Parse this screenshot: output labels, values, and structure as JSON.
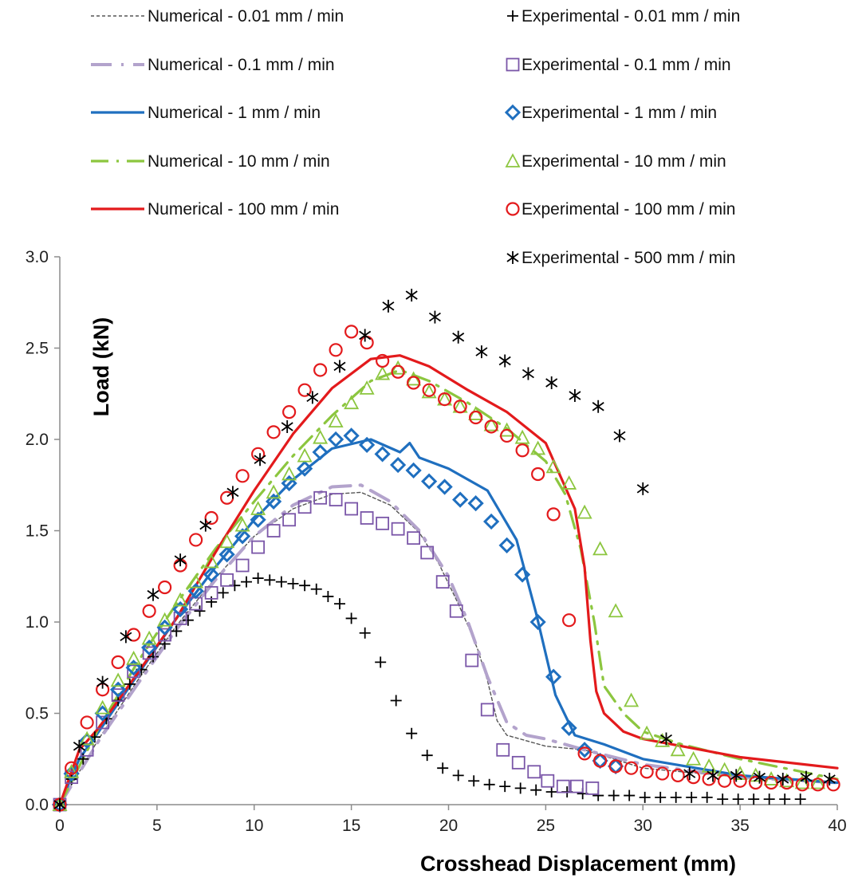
{
  "chart_data": {
    "type": "line",
    "title": "",
    "xlabel": "Crosshead Displacement (mm)",
    "ylabel": "Load (kN)",
    "xlim": [
      0,
      40
    ],
    "ylim": [
      0,
      3.0
    ],
    "x_ticks": [
      "0",
      "5",
      "10",
      "15",
      "20",
      "25",
      "30",
      "35",
      "40"
    ],
    "y_ticks": [
      "0.0",
      "0.5",
      "1.0",
      "1.5",
      "2.0",
      "2.5",
      "3.0"
    ],
    "grid": false,
    "legend_position": "top",
    "series": [
      {
        "name": "Numerical - 0.01 mm / min",
        "kind": "line",
        "style": "dashed-fine",
        "color": "#555555",
        "x": [
          0,
          2,
          4,
          6,
          8,
          10,
          12,
          14,
          15.5,
          17,
          18.5,
          19.5,
          20.5,
          21,
          21.5,
          22,
          22.5,
          23,
          25,
          27,
          30,
          35,
          40
        ],
        "y": [
          0,
          0.36,
          0.68,
          0.98,
          1.24,
          1.47,
          1.62,
          1.7,
          1.71,
          1.64,
          1.49,
          1.32,
          1.1,
          0.98,
          0.85,
          0.68,
          0.46,
          0.38,
          0.32,
          0.3,
          0.2,
          0.15,
          0.12
        ]
      },
      {
        "name": "Numerical - 0.1 mm / min",
        "kind": "line",
        "style": "long-dash-dot",
        "color": "#b3a3cc",
        "x": [
          0,
          2,
          4,
          6,
          8,
          10,
          12,
          14,
          15.5,
          17,
          18.5,
          20,
          21,
          22,
          23,
          24,
          25,
          27,
          30,
          35,
          40
        ],
        "y": [
          0,
          0.35,
          0.66,
          0.96,
          1.23,
          1.47,
          1.64,
          1.74,
          1.75,
          1.66,
          1.5,
          1.25,
          1.0,
          0.7,
          0.45,
          0.38,
          0.36,
          0.3,
          0.22,
          0.15,
          0.12
        ]
      },
      {
        "name": "Numerical - 1 mm / min",
        "kind": "line",
        "style": "solid",
        "color": "#1f6fbf",
        "x": [
          0,
          1,
          2,
          4,
          6,
          8,
          10,
          12,
          14,
          16,
          17.5,
          18,
          18.5,
          20,
          22,
          23.5,
          24.5,
          25.5,
          26.5,
          28,
          30,
          35,
          40
        ],
        "y": [
          0,
          0.25,
          0.4,
          0.71,
          1.02,
          1.3,
          1.56,
          1.78,
          1.95,
          2.0,
          1.93,
          1.98,
          1.9,
          1.84,
          1.72,
          1.45,
          1.05,
          0.6,
          0.38,
          0.33,
          0.25,
          0.16,
          0.12
        ]
      },
      {
        "name": "Numerical - 10 mm / min",
        "kind": "line",
        "style": "dash-dot",
        "color": "#8cc63f",
        "x": [
          0,
          2,
          4,
          6,
          8,
          10,
          12,
          14,
          16,
          17.5,
          19,
          21,
          23,
          25,
          26,
          26.8,
          27.5,
          28,
          29,
          30,
          32,
          35,
          40
        ],
        "y": [
          0,
          0.42,
          0.78,
          1.1,
          1.4,
          1.66,
          1.91,
          2.13,
          2.32,
          2.38,
          2.32,
          2.2,
          2.06,
          1.88,
          1.7,
          1.4,
          1.0,
          0.65,
          0.5,
          0.4,
          0.33,
          0.25,
          0.14
        ]
      },
      {
        "name": "Numerical - 100 mm / min",
        "kind": "line",
        "style": "solid",
        "color": "#e31a1c",
        "x": [
          0,
          1,
          2,
          4,
          6,
          8,
          10,
          12,
          14,
          16,
          17.5,
          19,
          21,
          23,
          25,
          26.5,
          27,
          27.3,
          27.6,
          28,
          29,
          30,
          32,
          35,
          40
        ],
        "y": [
          0,
          0.3,
          0.42,
          0.72,
          1.02,
          1.38,
          1.72,
          2.03,
          2.28,
          2.44,
          2.46,
          2.4,
          2.27,
          2.15,
          1.98,
          1.62,
          1.3,
          0.9,
          0.62,
          0.5,
          0.4,
          0.36,
          0.32,
          0.26,
          0.2
        ]
      },
      {
        "name": "Experimental - 0.01 mm / min",
        "kind": "marker",
        "marker": "plus",
        "color": "#000000",
        "x": [
          0,
          0.6,
          1.2,
          1.8,
          2.4,
          3.0,
          3.6,
          4.2,
          4.8,
          5.4,
          6.0,
          6.6,
          7.2,
          7.8,
          8.4,
          9.0,
          9.6,
          10.2,
          10.8,
          11.4,
          12.0,
          12.6,
          13.2,
          13.8,
          14.4,
          15.0,
          15.7,
          16.5,
          17.3,
          18.1,
          18.9,
          19.7,
          20.5,
          21.3,
          22.1,
          22.9,
          23.7,
          24.5,
          25.3,
          26.1,
          26.9,
          27.7,
          28.5,
          29.3,
          30.1,
          30.9,
          31.7,
          32.5,
          33.3,
          34.1,
          34.9,
          35.7,
          36.5,
          37.3,
          38.1
        ],
        "y": [
          0,
          0.14,
          0.25,
          0.37,
          0.47,
          0.57,
          0.66,
          0.74,
          0.81,
          0.88,
          0.95,
          1.01,
          1.06,
          1.11,
          1.16,
          1.2,
          1.22,
          1.24,
          1.23,
          1.22,
          1.21,
          1.2,
          1.18,
          1.14,
          1.1,
          1.02,
          0.94,
          0.78,
          0.57,
          0.39,
          0.27,
          0.2,
          0.16,
          0.13,
          0.11,
          0.1,
          0.09,
          0.08,
          0.07,
          0.07,
          0.06,
          0.05,
          0.05,
          0.05,
          0.04,
          0.04,
          0.04,
          0.04,
          0.04,
          0.03,
          0.03,
          0.03,
          0.03,
          0.03,
          0.03
        ]
      },
      {
        "name": "Experimental - 0.1 mm / min",
        "kind": "marker",
        "marker": "square",
        "color": "#7a56a8",
        "x": [
          0,
          0.6,
          1.4,
          2.2,
          3.0,
          3.8,
          4.6,
          5.4,
          6.2,
          7.0,
          7.8,
          8.6,
          9.4,
          10.2,
          11.0,
          11.8,
          12.6,
          13.4,
          14.2,
          15.0,
          15.8,
          16.6,
          17.4,
          18.2,
          18.9,
          19.7,
          20.4,
          21.2,
          22.0,
          22.8,
          23.6,
          24.4,
          25.1,
          25.9,
          26.6,
          27.4
        ],
        "y": [
          0,
          0.15,
          0.3,
          0.45,
          0.6,
          0.73,
          0.83,
          0.93,
          1.02,
          1.1,
          1.16,
          1.23,
          1.31,
          1.41,
          1.5,
          1.56,
          1.63,
          1.68,
          1.67,
          1.62,
          1.57,
          1.54,
          1.51,
          1.46,
          1.38,
          1.22,
          1.06,
          0.79,
          0.52,
          0.3,
          0.23,
          0.18,
          0.13,
          0.1,
          0.1,
          0.09
        ]
      },
      {
        "name": "Experimental - 1 mm / min",
        "kind": "marker",
        "marker": "diamond",
        "color": "#1f6fbf",
        "x": [
          0,
          0.6,
          1.4,
          2.2,
          3.0,
          3.8,
          4.6,
          5.4,
          6.2,
          7.0,
          7.8,
          8.6,
          9.4,
          10.2,
          11.0,
          11.8,
          12.6,
          13.4,
          14.2,
          15.0,
          15.8,
          16.6,
          17.4,
          18.2,
          19.0,
          19.8,
          20.6,
          21.4,
          22.2,
          23.0,
          23.8,
          24.6,
          25.4,
          26.2,
          27.0,
          27.8,
          28.6
        ],
        "y": [
          0,
          0.17,
          0.35,
          0.5,
          0.63,
          0.75,
          0.86,
          0.97,
          1.07,
          1.17,
          1.26,
          1.37,
          1.47,
          1.56,
          1.66,
          1.76,
          1.84,
          1.93,
          2.0,
          2.02,
          1.97,
          1.92,
          1.86,
          1.83,
          1.77,
          1.74,
          1.67,
          1.65,
          1.55,
          1.42,
          1.26,
          1.0,
          0.7,
          0.42,
          0.3,
          0.24,
          0.21
        ]
      },
      {
        "name": "Experimental - 10 mm / min",
        "kind": "marker",
        "marker": "triangle",
        "color": "#8cc63f",
        "x": [
          0,
          0.6,
          1.4,
          2.2,
          3.0,
          3.8,
          4.6,
          5.4,
          6.2,
          7.0,
          7.8,
          8.6,
          9.4,
          10.2,
          11.0,
          11.8,
          12.6,
          13.4,
          14.2,
          15.0,
          15.8,
          16.6,
          17.4,
          18.2,
          19.0,
          19.8,
          20.6,
          21.4,
          22.2,
          23.0,
          23.8,
          24.6,
          25.4,
          26.2,
          27.0,
          27.8,
          28.6,
          29.4,
          30.2,
          31.0,
          31.8,
          32.6,
          33.4,
          34.2,
          35.0,
          35.8,
          36.6,
          37.4,
          38.2,
          39.0
        ],
        "y": [
          0,
          0.18,
          0.36,
          0.53,
          0.68,
          0.8,
          0.91,
          1.01,
          1.12,
          1.22,
          1.33,
          1.44,
          1.53,
          1.62,
          1.71,
          1.81,
          1.91,
          2.01,
          2.1,
          2.2,
          2.28,
          2.36,
          2.39,
          2.33,
          2.26,
          2.22,
          2.18,
          2.14,
          2.08,
          2.05,
          2.01,
          1.95,
          1.85,
          1.76,
          1.6,
          1.4,
          1.06,
          0.57,
          0.39,
          0.35,
          0.3,
          0.25,
          0.21,
          0.19,
          0.17,
          0.16,
          0.14,
          0.13,
          0.12,
          0.12
        ]
      },
      {
        "name": "Experimental - 100 mm / min",
        "kind": "marker",
        "marker": "circle",
        "color": "#e31a1c",
        "x": [
          0,
          0.6,
          1.4,
          2.2,
          3.0,
          3.8,
          4.6,
          5.4,
          6.2,
          7.0,
          7.8,
          8.6,
          9.4,
          10.2,
          11.0,
          11.8,
          12.6,
          13.4,
          14.2,
          15.0,
          15.8,
          16.6,
          17.4,
          18.2,
          19.0,
          19.8,
          20.6,
          21.4,
          22.2,
          23.0,
          23.8,
          24.6,
          25.4,
          26.2,
          27.0,
          27.8,
          28.6,
          29.4,
          30.2,
          31.0,
          31.8,
          32.6,
          33.4,
          34.2,
          35.0,
          35.8,
          36.6,
          37.4,
          38.2,
          39.0,
          39.8
        ],
        "y": [
          0,
          0.2,
          0.45,
          0.63,
          0.78,
          0.93,
          1.06,
          1.19,
          1.31,
          1.45,
          1.57,
          1.68,
          1.8,
          1.92,
          2.04,
          2.15,
          2.27,
          2.38,
          2.49,
          2.59,
          2.53,
          2.43,
          2.37,
          2.31,
          2.27,
          2.22,
          2.18,
          2.12,
          2.07,
          2.02,
          1.94,
          1.81,
          1.59,
          1.01,
          0.28,
          0.24,
          0.21,
          0.2,
          0.18,
          0.17,
          0.16,
          0.15,
          0.14,
          0.13,
          0.13,
          0.12,
          0.12,
          0.12,
          0.11,
          0.11,
          0.11
        ]
      },
      {
        "name": "Experimental - 500 mm / min",
        "kind": "marker",
        "marker": "asterisk",
        "color": "#000000",
        "x": [
          0,
          1.0,
          2.2,
          3.4,
          4.8,
          6.2,
          7.5,
          8.9,
          10.3,
          11.7,
          13.0,
          14.4,
          15.7,
          16.9,
          18.1,
          19.3,
          20.5,
          21.7,
          22.9,
          24.1,
          25.3,
          26.5,
          27.7,
          28.8,
          30.0,
          31.2,
          32.4,
          33.6,
          34.8,
          36.0,
          37.2,
          38.4,
          39.6
        ],
        "y": [
          0,
          0.32,
          0.67,
          0.92,
          1.15,
          1.34,
          1.53,
          1.71,
          1.89,
          2.07,
          2.23,
          2.4,
          2.57,
          2.73,
          2.79,
          2.67,
          2.56,
          2.48,
          2.43,
          2.36,
          2.31,
          2.24,
          2.18,
          2.02,
          1.73,
          0.36,
          0.17,
          0.16,
          0.16,
          0.15,
          0.14,
          0.15,
          0.14
        ]
      }
    ]
  }
}
